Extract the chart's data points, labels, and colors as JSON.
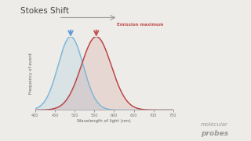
{
  "title": "Stokes Shift",
  "xlabel": "Wavelength of light (nm)",
  "ylabel": "Frequency of event",
  "bg_color": "#eeece8",
  "excitation_peak": 490,
  "excitation_sigma": 32,
  "emission_peak": 555,
  "emission_sigma": 38,
  "x_min": 400,
  "x_max": 750,
  "x_ticks": [
    400,
    450,
    500,
    550,
    600,
    650,
    700,
    750
  ],
  "excitation_color": "#7ab8d8",
  "emission_color": "#b84040",
  "arrow_excitation_color": "#5b9bd5",
  "arrow_emission_color": "#c0504d",
  "emission_max_label": "Emission maximum",
  "stokes_arrow_color": "#999999",
  "molecular_probes_color": "#999999"
}
